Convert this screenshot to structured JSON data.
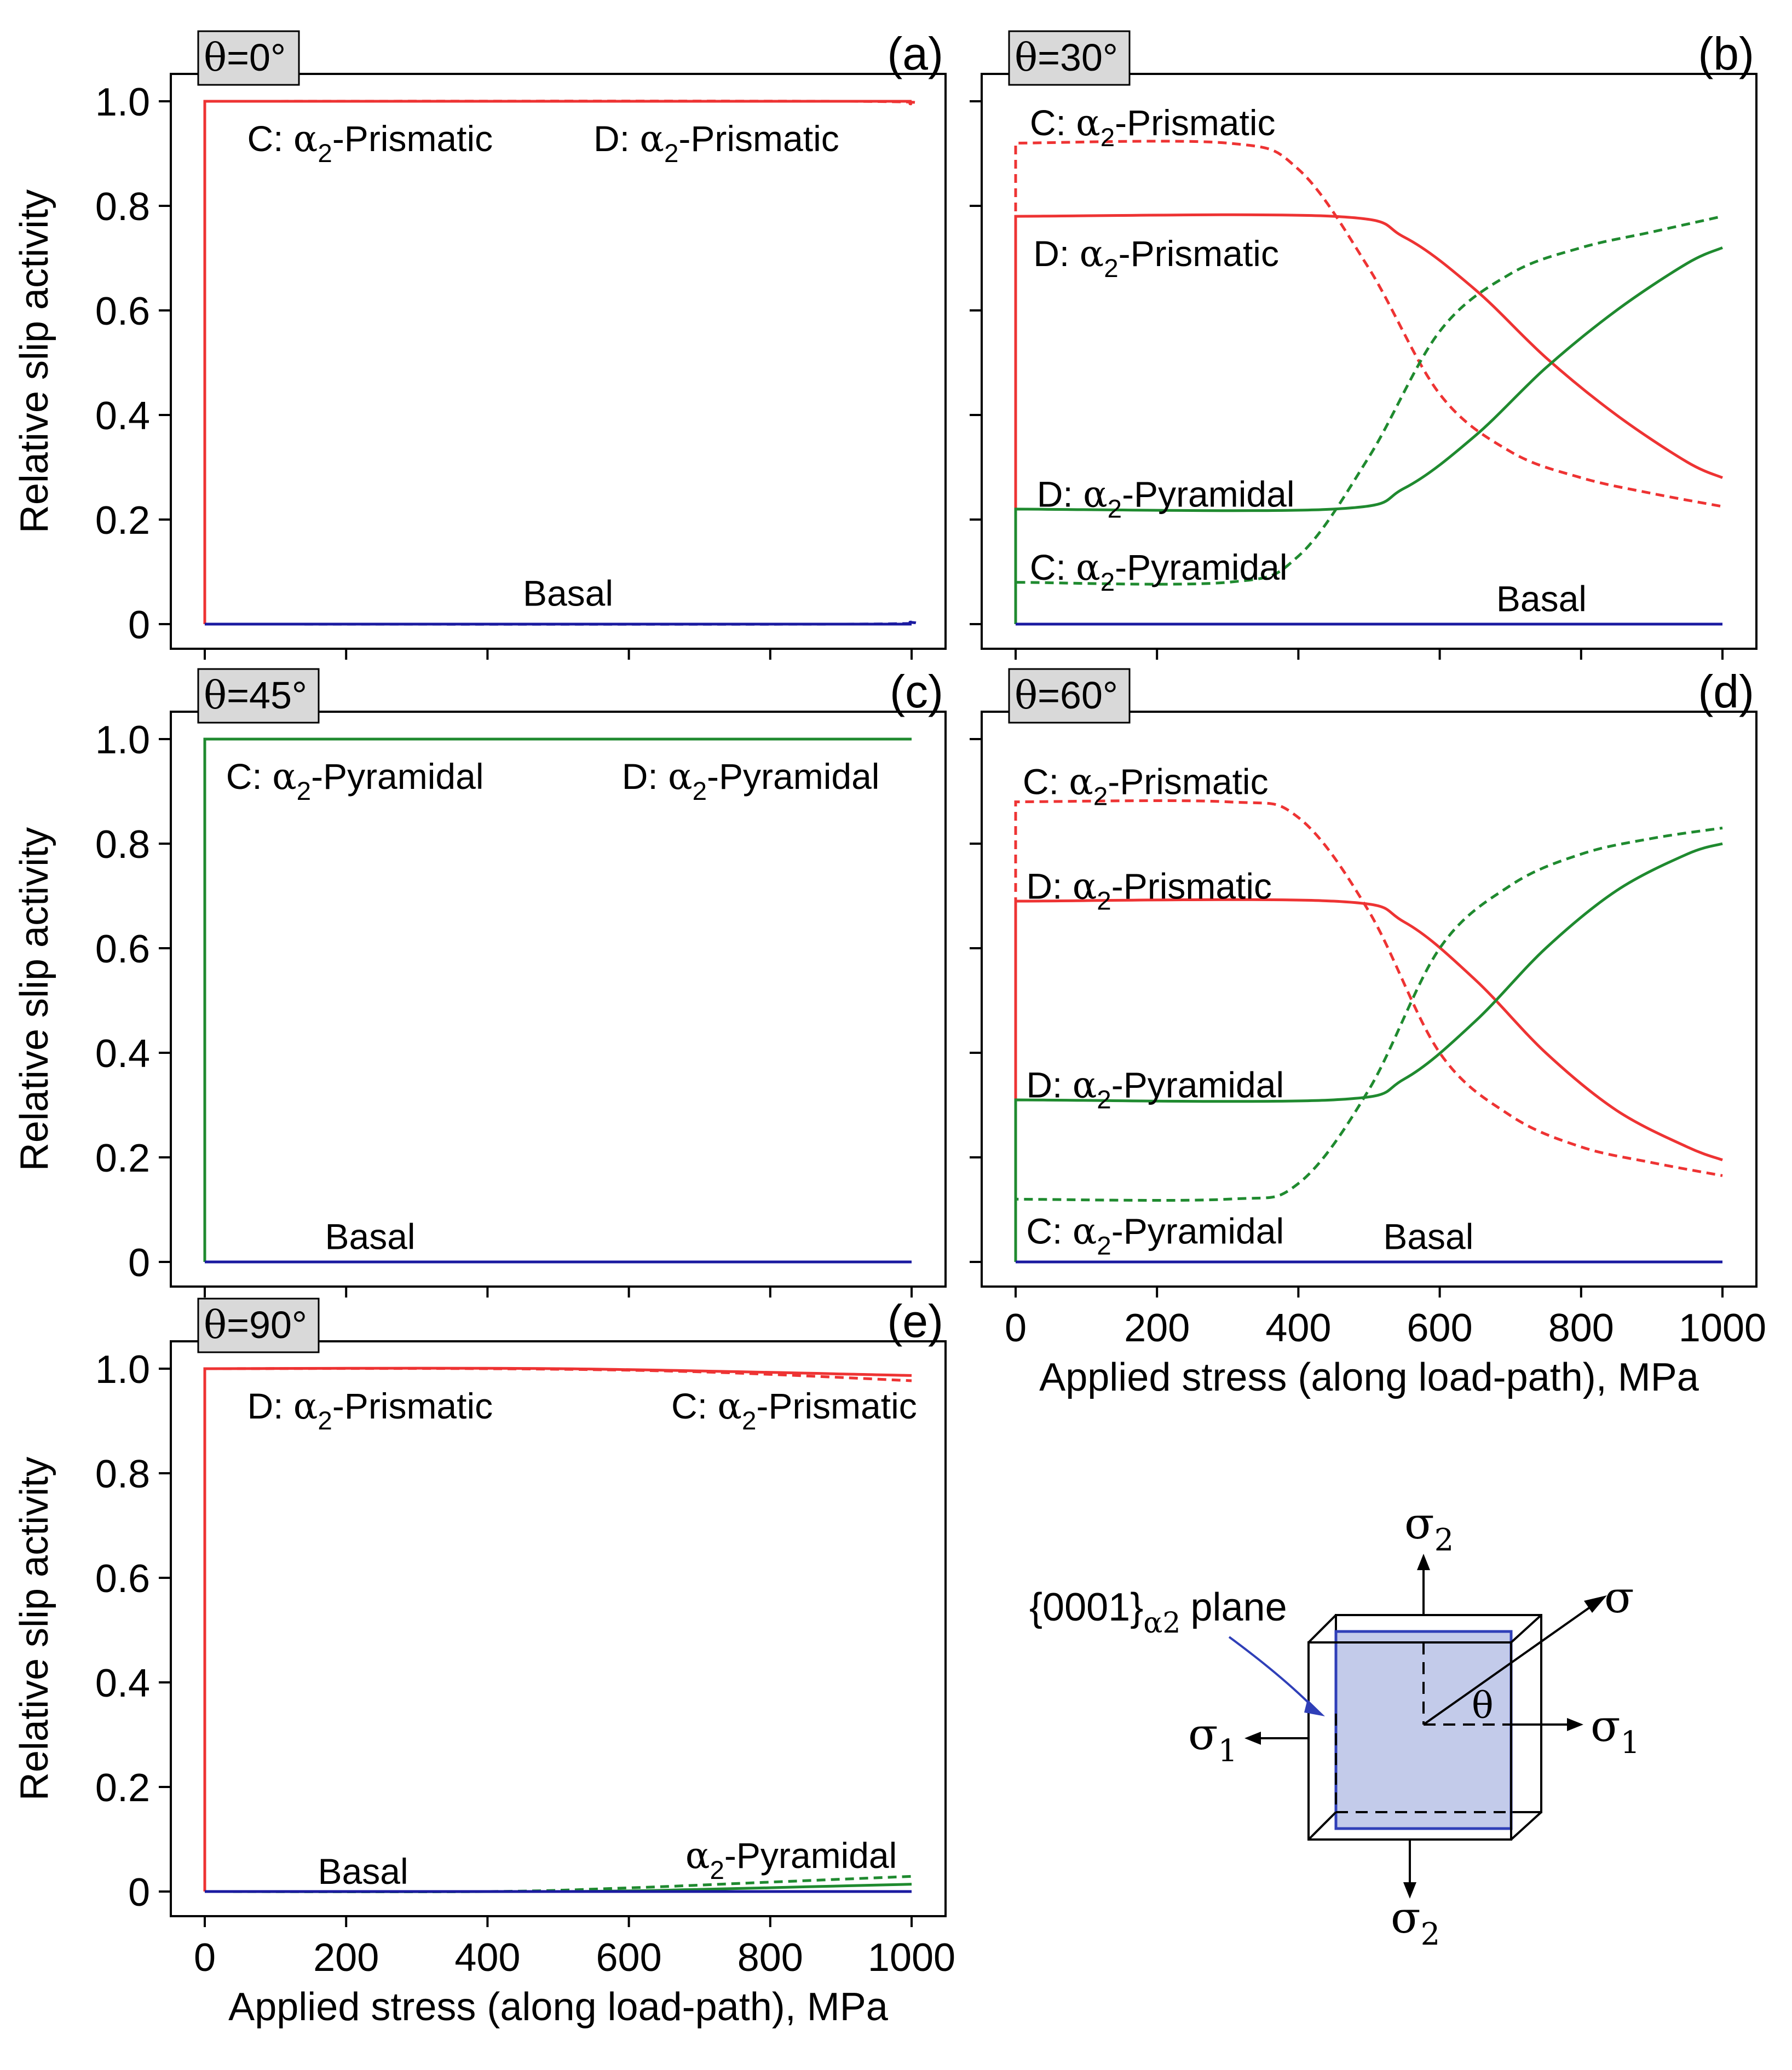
{
  "colors": {
    "prismatic": "#ee3333",
    "pyramidal": "#1f8a2f",
    "basal": "#1a1aa0",
    "plane_fill": "#c3cbea",
    "plane_stroke": "#2f3fb8",
    "tag_fill": "#d9d9d9"
  },
  "labels": {
    "ylabel": "Relative slip activity",
    "xlabel": "Applied stress (along load-path), MPa",
    "plane_label": "{0001}",
    "plane_sub": "α2",
    "plane_word": "plane"
  },
  "chart_data": [
    {
      "id": "a",
      "panel_label": "(a)",
      "angle_tag": "θ=0°",
      "type": "line",
      "title": "",
      "xlabel": "",
      "ylabel": "Relative slip activity",
      "xlim": [
        0,
        1000
      ],
      "ylim": [
        0,
        1.0
      ],
      "yticks": [
        "0",
        "0.2",
        "0.4",
        "0.6",
        "0.8",
        "1.0"
      ],
      "xticks": [],
      "series": [
        {
          "name": "C: α2-Prismatic",
          "style": "solid",
          "color_key": "prismatic",
          "x": [
            0,
            1000
          ],
          "y": [
            1.0,
            1.0
          ]
        },
        {
          "name": "D: α2-Prismatic",
          "style": "dashed",
          "color_key": "prismatic",
          "x": [
            0,
            900,
            1000
          ],
          "y": [
            1.0,
            1.0,
            0.995
          ]
        },
        {
          "name": "Basal",
          "style": "solid",
          "color_key": "basal",
          "x": [
            0,
            1000
          ],
          "y": [
            0,
            0
          ]
        },
        {
          "name": "Basal (D)",
          "style": "dashed",
          "color_key": "basal",
          "x": [
            0,
            900,
            1000
          ],
          "y": [
            0,
            0,
            0.004
          ]
        }
      ],
      "annotations": [
        {
          "text": "C: α2-Prismatic",
          "x": 60,
          "y": 0.93
        },
        {
          "text": "D: α2-Prismatic",
          "x": 550,
          "y": 0.93
        },
        {
          "text": "Basal",
          "x": 450,
          "y": 0.06
        }
      ]
    },
    {
      "id": "b",
      "panel_label": "(b)",
      "angle_tag": "θ=30°",
      "type": "line",
      "title": "",
      "xlabel": "",
      "ylabel": "",
      "xlim": [
        0,
        1000
      ],
      "ylim": [
        0,
        1.0
      ],
      "yticks": [],
      "xticks": [],
      "series": [
        {
          "name": "C: α2-Prismatic",
          "style": "dashed",
          "color_key": "prismatic",
          "x": [
            0,
            300,
            400,
            500,
            600,
            700,
            800,
            900,
            1000
          ],
          "y": [
            0.92,
            0.92,
            0.87,
            0.68,
            0.44,
            0.33,
            0.28,
            0.25,
            0.225
          ]
        },
        {
          "name": "D: α2-Prismatic",
          "style": "solid",
          "color_key": "prismatic",
          "x": [
            0,
            450,
            550,
            650,
            750,
            850,
            950,
            1000
          ],
          "y": [
            0.78,
            0.78,
            0.74,
            0.64,
            0.51,
            0.4,
            0.31,
            0.28
          ]
        },
        {
          "name": "D: α2-Pyramidal",
          "style": "solid",
          "color_key": "pyramidal",
          "x": [
            0,
            450,
            550,
            650,
            750,
            850,
            950,
            1000
          ],
          "y": [
            0.22,
            0.22,
            0.26,
            0.36,
            0.49,
            0.6,
            0.69,
            0.72
          ]
        },
        {
          "name": "C: α2-Pyramidal",
          "style": "dashed",
          "color_key": "pyramidal",
          "x": [
            0,
            300,
            400,
            500,
            600,
            700,
            800,
            900,
            1000
          ],
          "y": [
            0.08,
            0.08,
            0.13,
            0.32,
            0.56,
            0.67,
            0.72,
            0.75,
            0.78
          ]
        },
        {
          "name": "Basal",
          "style": "solid",
          "color_key": "basal",
          "x": [
            0,
            1000
          ],
          "y": [
            0,
            0
          ]
        }
      ],
      "annotations": [
        {
          "text": "C: α2-Prismatic",
          "x": 20,
          "y": 0.96
        },
        {
          "text": "D: α2-Prismatic",
          "x": 25,
          "y": 0.71
        },
        {
          "text": "D: α2-Pyramidal",
          "x": 30,
          "y": 0.25
        },
        {
          "text": "C: α2-Pyramidal",
          "x": 20,
          "y": 0.11
        },
        {
          "text": "Basal",
          "x": 680,
          "y": 0.05
        }
      ]
    },
    {
      "id": "c",
      "panel_label": "(c)",
      "angle_tag": "θ=45°",
      "type": "line",
      "title": "",
      "xlabel": "",
      "ylabel": "Relative slip activity",
      "xlim": [
        0,
        1000
      ],
      "ylim": [
        0,
        1.0
      ],
      "yticks": [
        "0",
        "0.2",
        "0.4",
        "0.6",
        "0.8",
        "1.0"
      ],
      "xticks": [],
      "series": [
        {
          "name": "C: α2-Pyramidal",
          "style": "solid",
          "color_key": "pyramidal",
          "x": [
            0,
            1000
          ],
          "y": [
            1.0,
            1.0
          ]
        },
        {
          "name": "D: α2-Pyramidal",
          "style": "dashed",
          "color_key": "pyramidal",
          "x": [
            0,
            1000
          ],
          "y": [
            1.0,
            1.0
          ]
        },
        {
          "name": "Basal",
          "style": "solid",
          "color_key": "basal",
          "x": [
            0,
            1000
          ],
          "y": [
            0,
            0
          ]
        }
      ],
      "annotations": [
        {
          "text": "C: α2-Pyramidal",
          "x": 30,
          "y": 0.93
        },
        {
          "text": "D: α2-Pyramidal",
          "x": 590,
          "y": 0.93
        },
        {
          "text": "Basal",
          "x": 170,
          "y": 0.05
        }
      ]
    },
    {
      "id": "d",
      "panel_label": "(d)",
      "angle_tag": "θ=60°",
      "type": "line",
      "title": "",
      "xlabel": "Applied stress (along load-path), MPa",
      "ylabel": "",
      "xlim": [
        0,
        1000
      ],
      "ylim": [
        0,
        1.0
      ],
      "yticks": [],
      "xticks": [
        "0",
        "200",
        "400",
        "600",
        "800",
        "1000"
      ],
      "series": [
        {
          "name": "C: α2-Prismatic",
          "style": "dashed",
          "color_key": "prismatic",
          "x": [
            0,
            300,
            400,
            500,
            600,
            700,
            800,
            900,
            1000
          ],
          "y": [
            0.88,
            0.88,
            0.85,
            0.67,
            0.4,
            0.28,
            0.22,
            0.19,
            0.165
          ]
        },
        {
          "name": "D: α2-Prismatic",
          "style": "solid",
          "color_key": "prismatic",
          "x": [
            0,
            450,
            550,
            650,
            750,
            850,
            950,
            1000
          ],
          "y": [
            0.69,
            0.69,
            0.65,
            0.54,
            0.4,
            0.29,
            0.22,
            0.195
          ]
        },
        {
          "name": "D: α2-Pyramidal",
          "style": "solid",
          "color_key": "pyramidal",
          "x": [
            0,
            450,
            550,
            650,
            750,
            850,
            950,
            1000
          ],
          "y": [
            0.31,
            0.31,
            0.35,
            0.46,
            0.6,
            0.71,
            0.78,
            0.8
          ]
        },
        {
          "name": "C: α2-Pyramidal",
          "style": "dashed",
          "color_key": "pyramidal",
          "x": [
            0,
            300,
            400,
            500,
            600,
            700,
            800,
            900,
            1000
          ],
          "y": [
            0.12,
            0.12,
            0.15,
            0.33,
            0.6,
            0.72,
            0.78,
            0.81,
            0.83
          ]
        },
        {
          "name": "Basal",
          "style": "solid",
          "color_key": "basal",
          "x": [
            0,
            1000
          ],
          "y": [
            0,
            0
          ]
        }
      ],
      "annotations": [
        {
          "text": "C: α2-Prismatic",
          "x": 10,
          "y": 0.92
        },
        {
          "text": "D: α2-Prismatic",
          "x": 15,
          "y": 0.72
        },
        {
          "text": "D: α2-Pyramidal",
          "x": 15,
          "y": 0.34
        },
        {
          "text": "C: α2-Pyramidal",
          "x": 15,
          "y": 0.06
        },
        {
          "text": "Basal",
          "x": 520,
          "y": 0.05
        }
      ]
    },
    {
      "id": "e",
      "panel_label": "(e)",
      "angle_tag": "θ=90°",
      "type": "line",
      "title": "",
      "xlabel": "Applied stress (along load-path), MPa",
      "ylabel": "Relative slip activity",
      "xlim": [
        0,
        1000
      ],
      "ylim": [
        0,
        1.0
      ],
      "yticks": [
        "0",
        "0.2",
        "0.4",
        "0.6",
        "0.8",
        "1.0"
      ],
      "xticks": [
        "0",
        "200",
        "400",
        "600",
        "800",
        "1000"
      ],
      "series": [
        {
          "name": "D: α2-Prismatic",
          "style": "solid",
          "color_key": "prismatic",
          "x": [
            0,
            500,
            1000
          ],
          "y": [
            1.0,
            1.0,
            0.987
          ]
        },
        {
          "name": "C: α2-Prismatic",
          "style": "dashed",
          "color_key": "prismatic",
          "x": [
            0,
            400,
            700,
            1000
          ],
          "y": [
            1.0,
            1.0,
            0.994,
            0.977
          ]
        },
        {
          "name": "α2-Pyramidal (C)",
          "style": "dashed",
          "color_key": "pyramidal",
          "x": [
            0,
            400,
            600,
            800,
            1000
          ],
          "y": [
            0,
            0,
            0.007,
            0.018,
            0.029
          ]
        },
        {
          "name": "α2-Pyramidal (D)",
          "style": "solid",
          "color_key": "pyramidal",
          "x": [
            0,
            500,
            700,
            850,
            1000
          ],
          "y": [
            0,
            0,
            0.004,
            0.009,
            0.014
          ]
        },
        {
          "name": "Basal",
          "style": "solid",
          "color_key": "basal",
          "x": [
            0,
            1000
          ],
          "y": [
            0,
            0
          ]
        }
      ],
      "annotations": [
        {
          "text": "D: α2-Prismatic",
          "x": 60,
          "y": 0.93
        },
        {
          "text": "C: α2-Prismatic",
          "x": 660,
          "y": 0.93
        },
        {
          "text": "α2-Pyramidal",
          "x": 680,
          "y": 0.07
        },
        {
          "text": "Basal",
          "x": 160,
          "y": 0.04
        }
      ]
    }
  ],
  "diagram": {
    "labels": {
      "sigma": "σ",
      "sigma1": "σ",
      "sigma1_sub": "1",
      "sigma2": "σ",
      "sigma2_sub": "2",
      "theta": "θ"
    }
  }
}
